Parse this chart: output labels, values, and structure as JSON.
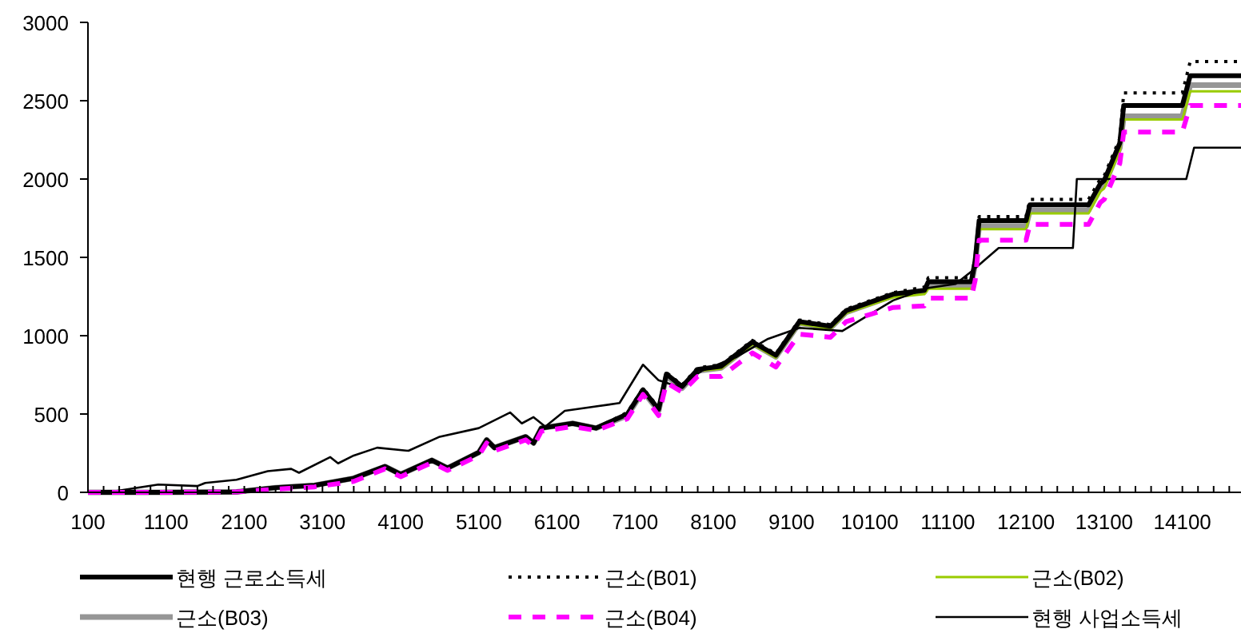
{
  "chart_data": {
    "type": "line",
    "xlim": [
      100,
      14850
    ],
    "ylim": [
      0,
      3000
    ],
    "yticks": [
      0,
      500,
      1000,
      1500,
      2000,
      2500,
      3000
    ],
    "xticks": [
      100,
      {
        "value": 300,
        "label": null
      },
      {
        "value": 500,
        "label": null
      },
      {
        "value": 700,
        "label": null
      },
      {
        "value": 900,
        "label": null
      },
      1100,
      {
        "value": 1300,
        "label": null
      },
      {
        "value": 1500,
        "label": null
      },
      {
        "value": 1700,
        "label": null
      },
      {
        "value": 1900,
        "label": null
      },
      2100,
      {
        "value": 2300,
        "label": null
      },
      {
        "value": 2500,
        "label": null
      },
      {
        "value": 2700,
        "label": null
      },
      {
        "value": 2900,
        "label": null
      },
      3100,
      {
        "value": 3300,
        "label": null
      },
      {
        "value": 3500,
        "label": null
      },
      {
        "value": 3700,
        "label": null
      },
      {
        "value": 3900,
        "label": null
      },
      4100,
      {
        "value": 4300,
        "label": null
      },
      {
        "value": 4500,
        "label": null
      },
      {
        "value": 4700,
        "label": null
      },
      {
        "value": 4900,
        "label": null
      },
      5100,
      {
        "value": 5300,
        "label": null
      },
      {
        "value": 5500,
        "label": null
      },
      {
        "value": 5700,
        "label": null
      },
      {
        "value": 5900,
        "label": null
      },
      6100,
      {
        "value": 6300,
        "label": null
      },
      {
        "value": 6500,
        "label": null
      },
      {
        "value": 6700,
        "label": null
      },
      {
        "value": 6900,
        "label": null
      },
      7100,
      {
        "value": 7300,
        "label": null
      },
      {
        "value": 7500,
        "label": null
      },
      {
        "value": 7700,
        "label": null
      },
      {
        "value": 7900,
        "label": null
      },
      8100,
      {
        "value": 8300,
        "label": null
      },
      {
        "value": 8500,
        "label": null
      },
      {
        "value": 8700,
        "label": null
      },
      {
        "value": 8900,
        "label": null
      },
      9100,
      {
        "value": 9300,
        "label": null
      },
      {
        "value": 9500,
        "label": null
      },
      {
        "value": 9700,
        "label": null
      },
      {
        "value": 9900,
        "label": null
      },
      10100,
      {
        "value": 10300,
        "label": null
      },
      {
        "value": 10500,
        "label": null
      },
      {
        "value": 10700,
        "label": null
      },
      {
        "value": 10900,
        "label": null
      },
      11100,
      {
        "value": 11300,
        "label": null
      },
      {
        "value": 11500,
        "label": null
      },
      {
        "value": 11700,
        "label": null
      },
      {
        "value": 11900,
        "label": null
      },
      12100,
      {
        "value": 12300,
        "label": null
      },
      {
        "value": 12500,
        "label": null
      },
      {
        "value": 12700,
        "label": null
      },
      {
        "value": 12900,
        "label": null
      },
      13100,
      {
        "value": 13300,
        "label": null
      },
      {
        "value": 13500,
        "label": null
      },
      {
        "value": 13700,
        "label": null
      },
      {
        "value": 13900,
        "label": null
      },
      14100,
      {
        "value": 14300,
        "label": null
      },
      {
        "value": 14500,
        "label": null
      },
      {
        "value": 14700,
        "label": null
      }
    ],
    "x": [
      100,
      1000,
      2000,
      2500,
      3000,
      3500,
      3900,
      4100,
      4500,
      4700,
      5100,
      5200,
      5300,
      5700,
      5800,
      5900,
      6300,
      6600,
      7000,
      7200,
      7400,
      7500,
      7700,
      7900,
      8200,
      8600,
      8900,
      9200,
      9600,
      9800,
      10400,
      10800,
      10850,
      11400,
      11450,
      11500,
      12100,
      12150,
      12900,
      13050,
      13100,
      13300,
      13350,
      13600,
      14100,
      14200,
      14850
    ],
    "legend": "bottom",
    "grid": false,
    "series": [
      {
        "name": "현행 근로소득세",
        "color": "#000000",
        "line_style": "solid",
        "values": [
          0,
          0,
          3,
          30,
          45,
          90,
          165,
          115,
          205,
          155,
          255,
          335,
          285,
          355,
          315,
          410,
          440,
          410,
          500,
          655,
          530,
          755,
          675,
          785,
          805,
          960,
          875,
          1090,
          1060,
          1160,
          1265,
          1290,
          1345,
          1345,
          1480,
          1735,
          1735,
          1835,
          1835,
          1970,
          1990,
          2230,
          2470,
          2470,
          2470,
          2660,
          2660
        ]
      },
      {
        "name": "근소(B01)",
        "color": "#000000",
        "line_style": "dotted",
        "values": [
          0,
          0,
          3,
          30,
          45,
          90,
          165,
          115,
          205,
          155,
          255,
          335,
          285,
          355,
          315,
          410,
          440,
          410,
          510,
          665,
          540,
          765,
          685,
          795,
          815,
          970,
          885,
          1100,
          1070,
          1170,
          1275,
          1310,
          1370,
          1370,
          1500,
          1760,
          1760,
          1870,
          1870,
          2000,
          2020,
          2260,
          2550,
          2550,
          2550,
          2750,
          2750
        ]
      },
      {
        "name": "근소(B02)",
        "color": "#99cc00",
        "line_style": "solid",
        "values": [
          null,
          null,
          null,
          null,
          null,
          null,
          null,
          null,
          null,
          null,
          null,
          null,
          null,
          null,
          null,
          null,
          null,
          null,
          null,
          null,
          null,
          null,
          null,
          775,
          790,
          945,
          860,
          1075,
          1045,
          1145,
          1245,
          1265,
          1300,
          1300,
          null,
          1680,
          1680,
          1780,
          1780,
          1920,
          1940,
          2180,
          2380,
          2380,
          2380,
          2560,
          2560
        ]
      },
      {
        "name": "근소(B03)",
        "color": "#969696",
        "line_style": "solid",
        "values": [
          0,
          0,
          3,
          30,
          45,
          90,
          165,
          115,
          205,
          155,
          255,
          335,
          285,
          355,
          315,
          410,
          440,
          410,
          490,
          645,
          520,
          745,
          665,
          775,
          795,
          950,
          865,
          1080,
          1050,
          1150,
          1255,
          1280,
          1320,
          1320,
          1460,
          1700,
          1700,
          1800,
          1800,
          1940,
          1960,
          2200,
          2400,
          2400,
          2400,
          2600,
          2600
        ]
      },
      {
        "name": "근소(B04)",
        "color": "#ff00ff",
        "line_style": "dashed",
        "values": [
          0,
          0,
          3,
          20,
          35,
          70,
          150,
          100,
          190,
          140,
          235,
          315,
          265,
          335,
          295,
          390,
          420,
          395,
          470,
          625,
          490,
          700,
          640,
          740,
          740,
          890,
          800,
          1010,
          990,
          1090,
          1180,
          1190,
          1240,
          1240,
          1355,
          1610,
          1610,
          1710,
          1710,
          1850,
          1870,
          2100,
          2300,
          2300,
          2300,
          2470,
          2470
        ]
      },
      {
        "name": "현행 사업소득세",
        "color": "#000000",
        "line_style": "solid",
        "x": [
          100,
          350,
          1000,
          1500,
          1600,
          2000,
          2400,
          2700,
          2800,
          3200,
          3300,
          3500,
          3800,
          4200,
          4600,
          5100,
          5500,
          5650,
          5800,
          5950,
          6200,
          6900,
          7200,
          7400,
          7650,
          7950,
          8400,
          8800,
          9200,
          9750,
          10050,
          10400,
          10850,
          11200,
          11400,
          11750,
          12700,
          12750,
          14150,
          14250,
          14850
        ],
        "values": [
          0,
          0,
          50,
          40,
          60,
          80,
          135,
          150,
          125,
          225,
          185,
          235,
          285,
          265,
          355,
          410,
          510,
          440,
          480,
          420,
          520,
          570,
          815,
          715,
          675,
          775,
          865,
          980,
          1050,
          1030,
          1120,
          1225,
          1305,
          1330,
          1410,
          1560,
          1560,
          2000,
          2000,
          2200,
          2200
        ]
      }
    ]
  }
}
